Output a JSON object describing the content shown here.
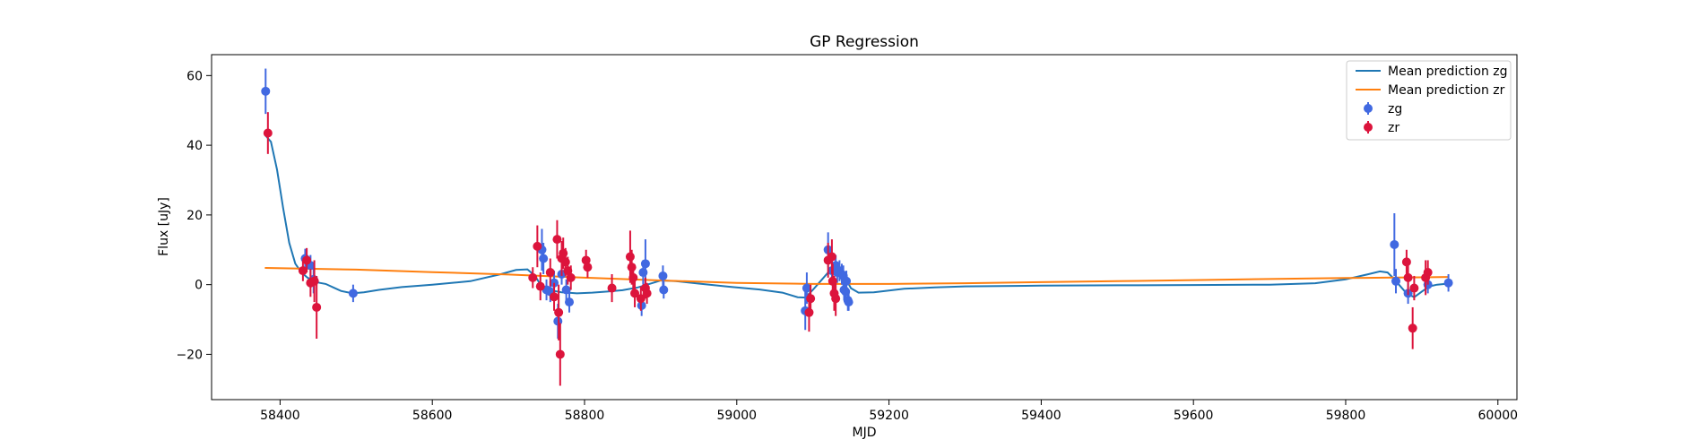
{
  "chart_data": {
    "type": "scatter",
    "title": "GP Regression",
    "xlabel": "MJD",
    "ylabel": "Flux [uJy]",
    "xlim": [
      58310,
      60025
    ],
    "ylim": [
      -33,
      66
    ],
    "xticks": [
      58400,
      58600,
      58800,
      59000,
      59200,
      59400,
      59600,
      59800,
      60000
    ],
    "yticks": [
      -20,
      0,
      20,
      40,
      60
    ],
    "legend_position": "upper-right",
    "grid": false,
    "series": [
      {
        "name": "Mean prediction zg",
        "kind": "line",
        "color": "#1f77b4",
        "x": [
          58380,
          58388,
          58396,
          58404,
          58412,
          58420,
          58428,
          58436,
          58444,
          58452,
          58460,
          58470,
          58480,
          58495,
          58510,
          58530,
          58560,
          58600,
          58650,
          58690,
          58710,
          58725,
          58735,
          58745,
          58752,
          58760,
          58770,
          58790,
          58810,
          58830,
          58850,
          58870,
          58890,
          58900,
          58920,
          58950,
          58990,
          59030,
          59060,
          59080,
          59090,
          59100,
          59110,
          59120,
          59128,
          59135,
          59140,
          59145,
          59150,
          59160,
          59180,
          59220,
          59260,
          59300,
          59400,
          59500,
          59600,
          59700,
          59760,
          59800,
          59830,
          59845,
          59855,
          59862,
          59870,
          59880,
          59890,
          59900,
          59910,
          59920,
          59935
        ],
        "y": [
          43,
          41,
          33,
          22,
          12,
          6,
          3.5,
          2,
          1,
          0.5,
          0.2,
          -0.8,
          -1.8,
          -2.5,
          -2.2,
          -1.5,
          -0.7,
          0,
          1,
          3,
          4.2,
          4.4,
          2.5,
          -1,
          -1.5,
          -1.8,
          -2.2,
          -2.5,
          -2.3,
          -2,
          -1.6,
          -0.8,
          0.5,
          1.2,
          1,
          0.3,
          -0.6,
          -1.4,
          -2.3,
          -3.6,
          -3.7,
          -1.5,
          1,
          3.5,
          4.3,
          3.6,
          2.5,
          1,
          -1,
          -2.3,
          -2.2,
          -1.2,
          -0.8,
          -0.5,
          -0.3,
          -0.2,
          -0.1,
          0,
          0.4,
          1.5,
          3,
          3.8,
          3.5,
          2,
          0,
          -2.5,
          -3.6,
          -2,
          -0.5,
          0,
          0.3
        ]
      },
      {
        "name": "Mean prediction zr",
        "kind": "line",
        "color": "#ff7f0e",
        "x": [
          58380,
          58500,
          58600,
          58700,
          58800,
          58900,
          59000,
          59100,
          59200,
          59300,
          59400,
          59500,
          59600,
          59700,
          59800,
          59850,
          59900,
          59935
        ],
        "y": [
          4.8,
          4.3,
          3.6,
          2.9,
          2.0,
          1.2,
          0.5,
          0.2,
          0.2,
          0.4,
          0.7,
          1.0,
          1.3,
          1.6,
          1.9,
          2.0,
          2.1,
          2.2
        ]
      },
      {
        "name": "zg",
        "kind": "errorbar",
        "color": "#4169e1",
        "points": [
          [
            58381,
            55.5,
            6.5
          ],
          [
            58433,
            7.5,
            2.8
          ],
          [
            58440,
            5.5,
            3
          ],
          [
            58444,
            1.5,
            4
          ],
          [
            58496,
            -2.5,
            2.5
          ],
          [
            58744,
            10,
            6
          ],
          [
            58746,
            7.5,
            4.5
          ],
          [
            58750,
            -1.5,
            3
          ],
          [
            58755,
            -2,
            3
          ],
          [
            58760,
            0.5,
            3.5
          ],
          [
            58765,
            -10.5,
            5
          ],
          [
            58770,
            3,
            3
          ],
          [
            58776,
            -1.5,
            3
          ],
          [
            58780,
            -5,
            3
          ],
          [
            58875,
            -6,
            3
          ],
          [
            58877,
            3.5,
            3.5
          ],
          [
            58880,
            6,
            7
          ],
          [
            58903,
            2.5,
            3
          ],
          [
            58904,
            -1.5,
            2.5
          ],
          [
            59090,
            -7.5,
            5.5
          ],
          [
            59092,
            -1,
            4.5
          ],
          [
            59120,
            10,
            5
          ],
          [
            59125,
            4,
            3.5
          ],
          [
            59130,
            5.5,
            3
          ],
          [
            59132,
            3.5,
            3
          ],
          [
            59135,
            4,
            3
          ],
          [
            59138,
            3,
            3
          ],
          [
            59140,
            2.5,
            3
          ],
          [
            59141,
            -1.5,
            3
          ],
          [
            59143,
            -2,
            3
          ],
          [
            59144,
            1,
            3
          ],
          [
            59146,
            -4.5,
            3
          ],
          [
            59147,
            -5,
            2.5
          ],
          [
            59864,
            11.5,
            9
          ],
          [
            59866,
            1,
            3.5
          ],
          [
            59882,
            -2.5,
            3
          ],
          [
            59908,
            0,
            2.5
          ],
          [
            59935,
            0.5,
            2.5
          ]
        ]
      },
      {
        "name": "zr",
        "kind": "errorbar",
        "color": "#dc143c",
        "points": [
          [
            58384,
            43.5,
            6
          ],
          [
            58430,
            4,
            3
          ],
          [
            58435,
            7,
            3.5
          ],
          [
            58440,
            0.5,
            4
          ],
          [
            58445,
            1,
            6
          ],
          [
            58448,
            -6.5,
            9
          ],
          [
            58732,
            2,
            3
          ],
          [
            58738,
            11,
            6
          ],
          [
            58742,
            -0.5,
            4
          ],
          [
            58755,
            3.5,
            4
          ],
          [
            58760,
            -3.5,
            4
          ],
          [
            58764,
            13,
            5.5
          ],
          [
            58766,
            -8,
            8
          ],
          [
            58768,
            -20,
            9
          ],
          [
            58770,
            7.5,
            5
          ],
          [
            58772,
            9,
            4.5
          ],
          [
            58775,
            6.5,
            4
          ],
          [
            58778,
            4,
            4
          ],
          [
            58782,
            2,
            3.5
          ],
          [
            58802,
            7,
            3
          ],
          [
            58804,
            5,
            3
          ],
          [
            58836,
            -1,
            4
          ],
          [
            58860,
            8,
            7.5
          ],
          [
            58862,
            5,
            5
          ],
          [
            58864,
            2,
            4
          ],
          [
            58866,
            -2.5,
            4
          ],
          [
            58874,
            -4,
            3.5
          ],
          [
            58880,
            -1,
            3
          ],
          [
            58882,
            -2.5,
            3
          ],
          [
            59095,
            -8,
            5.5
          ],
          [
            59097,
            -4,
            4
          ],
          [
            59120,
            7,
            5
          ],
          [
            59125,
            8,
            5
          ],
          [
            59126,
            1,
            5
          ],
          [
            59128,
            -2.5,
            5
          ],
          [
            59130,
            -4,
            5
          ],
          [
            59880,
            6.5,
            3.5
          ],
          [
            59882,
            2,
            5
          ],
          [
            59888,
            -12.5,
            6
          ],
          [
            59890,
            -1,
            3.5
          ],
          [
            59905,
            2,
            5
          ],
          [
            59908,
            3.5,
            3.5
          ]
        ]
      }
    ]
  }
}
